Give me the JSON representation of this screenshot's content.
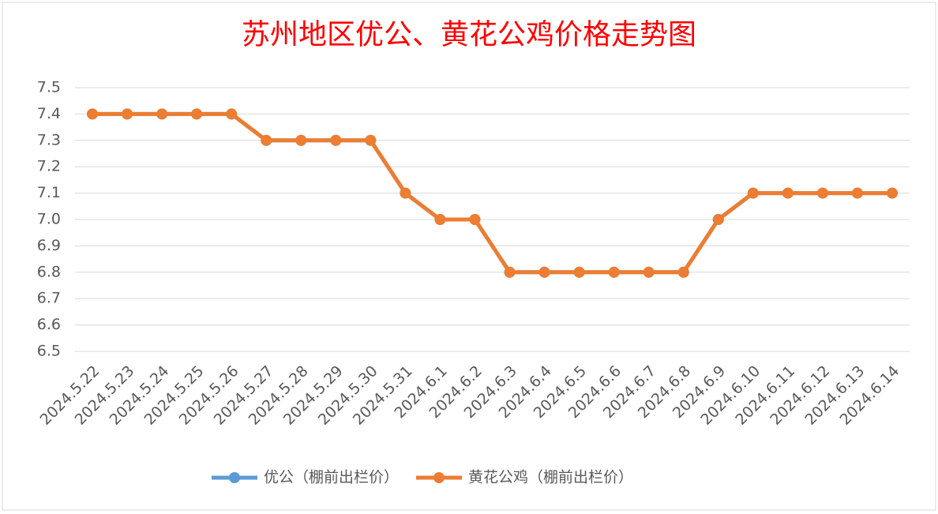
{
  "chart_data": {
    "type": "line",
    "title": "苏州地区优公、黄花公鸡价格走势图",
    "categories": [
      "2024.5.22",
      "2024.5.23",
      "2024.5.24",
      "2024.5.25",
      "2024.5.26",
      "2024.5.27",
      "2024.5.28",
      "2024.5.29",
      "2024.5.30",
      "2024.5.31",
      "2024.6.1",
      "2024.6.2",
      "2024.6.3",
      "2024.6.4",
      "2024.6.5",
      "2024.6.6",
      "2024.6.7",
      "2024.6.8",
      "2024.6.9",
      "2024.6.10",
      "2024.6.11",
      "2024.6.12",
      "2024.6.13",
      "2024.6.14"
    ],
    "series": [
      {
        "name": "优公（棚前出栏价）",
        "color": "#5b9bd5",
        "values": [
          7.4,
          7.4,
          7.4,
          7.4,
          7.4,
          7.3,
          7.3,
          7.3,
          7.3,
          7.1,
          7.0,
          7.0,
          6.8,
          6.8,
          6.8,
          6.8,
          6.8,
          6.8,
          7.0,
          7.1,
          7.1,
          7.1,
          7.1,
          7.1
        ]
      },
      {
        "name": "黄花公鸡（棚前出栏价）",
        "color": "#ed7d31",
        "values": [
          7.4,
          7.4,
          7.4,
          7.4,
          7.4,
          7.3,
          7.3,
          7.3,
          7.3,
          7.1,
          7.0,
          7.0,
          6.8,
          6.8,
          6.8,
          6.8,
          6.8,
          6.8,
          7.0,
          7.1,
          7.1,
          7.1,
          7.1,
          7.1
        ]
      }
    ],
    "ylim": [
      6.5,
      7.5
    ],
    "yticks": [
      6.5,
      6.6,
      6.7,
      6.8,
      6.9,
      {
        "value": 7,
        "label": "7.0"
      },
      7.1,
      7.2,
      7.3,
      7.4,
      7.5
    ],
    "grid": true,
    "legend": "bottom"
  }
}
